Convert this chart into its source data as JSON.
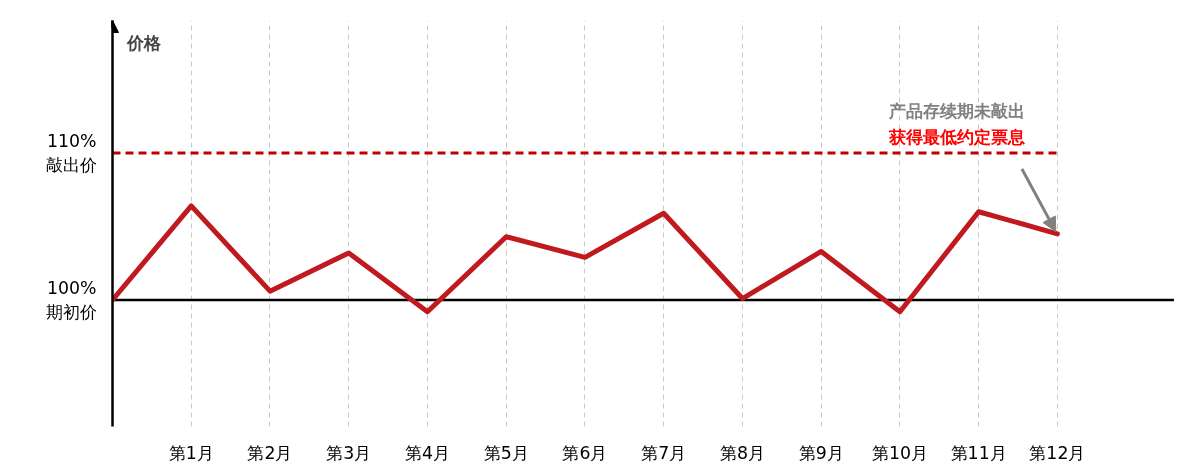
{
  "chart_data": {
    "type": "line",
    "categories": [
      null,
      "第1月",
      "第2月",
      "第3月",
      "第4月",
      "第5月",
      "第6月",
      "第7月",
      "第8月",
      "第9月",
      "第10月",
      "第11月",
      "第12月"
    ],
    "series": [
      {
        "color": "#c0191f",
        "values": [
          100,
          106.4,
          100.6,
          103.2,
          99.2,
          104.3,
          102.9,
          105.9,
          100.1,
          103.3,
          99.2,
          106.0,
          104.5
        ]
      }
    ],
    "ylim": [
      91.4,
      119
    ],
    "yticks": [
      {
        "value": 100,
        "label": "100%\n期初价"
      },
      {
        "value": 110,
        "label": "110%\n敲出价"
      }
    ],
    "ref_lines": [
      {
        "axis": "y",
        "value": 100,
        "color": "#000000",
        "line_style": "solid"
      },
      {
        "axis": "y",
        "value": 110,
        "color": "#c00000",
        "line_style": "dashed"
      }
    ],
    "annotations": [
      "价格",
      "产品存续期未敲出",
      "获得最低约定票息"
    ],
    "grid": "x",
    "marker": "none",
    "line_style": "solid"
  }
}
